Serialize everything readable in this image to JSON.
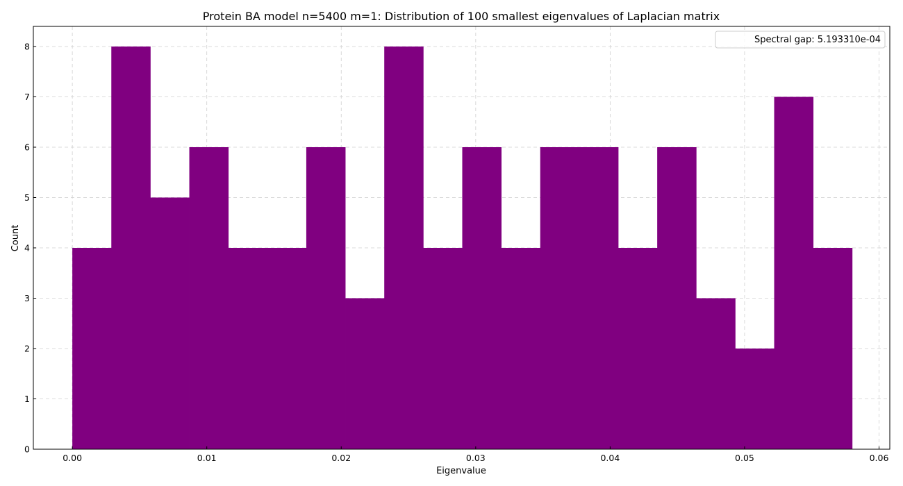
{
  "chart_data": {
    "type": "bar",
    "title": "Protein BA model n=5400 m=1: Distribution of 100 smallest eigenvalues of Laplacian matrix",
    "xlabel": "Eigenvalue",
    "ylabel": "Count",
    "xlim": [
      -0.0029,
      0.0608
    ],
    "ylim": [
      0,
      8.4
    ],
    "x_ticks": [
      0.0,
      0.01,
      0.02,
      0.03,
      0.04,
      0.05,
      0.06
    ],
    "x_tick_labels": [
      "0.00",
      "0.01",
      "0.02",
      "0.03",
      "0.04",
      "0.05",
      "0.06"
    ],
    "y_ticks": [
      0,
      1,
      2,
      3,
      4,
      5,
      6,
      7,
      8
    ],
    "y_tick_labels": [
      "0",
      "1",
      "2",
      "3",
      "4",
      "5",
      "6",
      "7",
      "8"
    ],
    "bin_edges": [
      0.0,
      0.0029,
      0.0058,
      0.0087,
      0.0116,
      0.0145,
      0.0174,
      0.0203,
      0.0232,
      0.0261,
      0.029,
      0.0319,
      0.0348,
      0.0377,
      0.0406,
      0.0435,
      0.0464,
      0.0493,
      0.0522,
      0.0551,
      0.058
    ],
    "values": [
      4,
      8,
      5,
      6,
      4,
      4,
      6,
      3,
      8,
      4,
      6,
      4,
      6,
      6,
      4,
      6,
      3,
      2,
      7,
      4
    ],
    "bar_color": "#800080",
    "grid": true,
    "legend": {
      "position": "top-right",
      "entries": [
        "Spectral gap: 5.193310e-04"
      ]
    }
  }
}
